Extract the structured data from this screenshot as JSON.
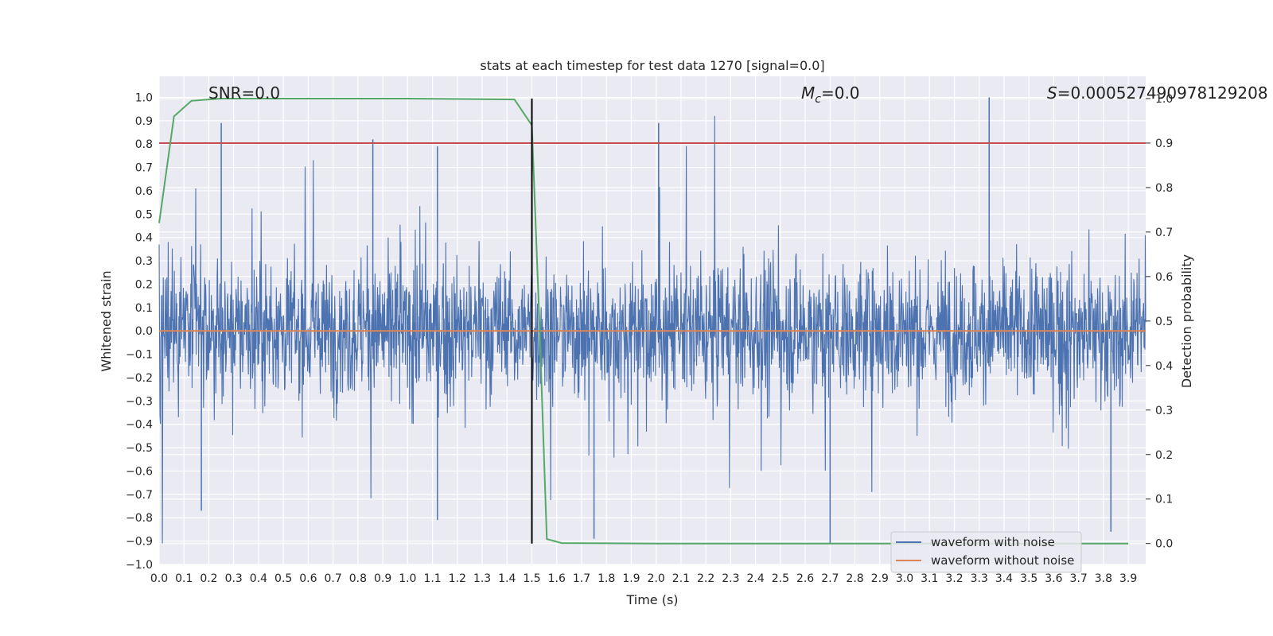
{
  "chart_data": {
    "type": "line",
    "title": "stats at each timestep for test data 1270 [signal=0.0]",
    "xlabel": "Time (s)",
    "ylabel": "Whitened strain",
    "y2label": "Detection probability",
    "xlim": [
      0.0,
      3.97
    ],
    "ylim": [
      -1.0,
      1.09
    ],
    "y2lim": [
      -0.047,
      1.05
    ],
    "xticks": [
      "0.0",
      "0.1",
      "0.2",
      "0.3",
      "0.4",
      "0.5",
      "0.6",
      "0.7",
      "0.8",
      "0.9",
      "1.0",
      "1.1",
      "1.2",
      "1.3",
      "1.4",
      "1.5",
      "1.6",
      "1.7",
      "1.8",
      "1.9",
      "2.0",
      "2.1",
      "2.2",
      "2.3",
      "2.4",
      "2.5",
      "2.6",
      "2.7",
      "2.8",
      "2.9",
      "3.0",
      "3.1",
      "3.2",
      "3.3",
      "3.4",
      "3.5",
      "3.6",
      "3.7",
      "3.8",
      "3.9"
    ],
    "yticks": [
      "−1.0",
      "−0.9",
      "−0.8",
      "−0.7",
      "−0.6",
      "−0.5",
      "−0.4",
      "−0.3",
      "−0.2",
      "−0.1",
      "0.0",
      "0.1",
      "0.2",
      "0.3",
      "0.4",
      "0.5",
      "0.6",
      "0.7",
      "0.8",
      "0.9",
      "1.0"
    ],
    "y2ticks": [
      "0.0",
      "0.1",
      "0.2",
      "0.3",
      "0.4",
      "0.5",
      "0.6",
      "0.7",
      "0.8",
      "0.9",
      "1.0"
    ],
    "annotations": {
      "snr": "SNR=0.0",
      "mc_symbol": "M",
      "mc_sub": "c",
      "mc_value": "=0.0",
      "s_symbol": "S",
      "s_value": "=0.000527490978129208"
    },
    "legend": {
      "position": "lower-right",
      "entries": [
        {
          "name": "waveform with noise",
          "color": "#4c72b0"
        },
        {
          "name": "waveform without noise",
          "color": "#dd8452"
        }
      ]
    },
    "series": [
      {
        "name": "waveform with noise",
        "axis": "left",
        "style": "dense-noise",
        "x_range": [
          0.0,
          3.97
        ],
        "approx_std": 0.2,
        "max": 1.0,
        "min": -0.91,
        "color": "#4c72b0"
      },
      {
        "name": "waveform without noise",
        "axis": "left",
        "x": [
          0.0,
          3.97
        ],
        "y": [
          0.0,
          0.0
        ],
        "color": "#dd8452"
      },
      {
        "name": "detection probability",
        "axis": "right",
        "x": [
          0.0,
          0.06,
          0.13,
          0.25,
          0.5,
          1.0,
          1.43,
          1.5,
          1.53,
          1.56,
          1.62,
          2.0,
          3.0,
          3.9
        ],
        "y": [
          0.72,
          0.96,
          0.995,
          1.0,
          1.0,
          1.0,
          0.998,
          0.94,
          0.5,
          0.01,
          0.001,
          0.0,
          0.0,
          0.0
        ],
        "color": "#55a868"
      },
      {
        "name": "threshold",
        "axis": "right",
        "x": [
          0.0,
          3.97
        ],
        "y": [
          0.9,
          0.9
        ],
        "color": "#c44e52"
      }
    ],
    "vline": {
      "x": 1.5,
      "y_from": 0.0,
      "y_to": 1.0,
      "axis": "right",
      "color": "#000000"
    },
    "background": "#eaeaf2",
    "grid": true
  }
}
